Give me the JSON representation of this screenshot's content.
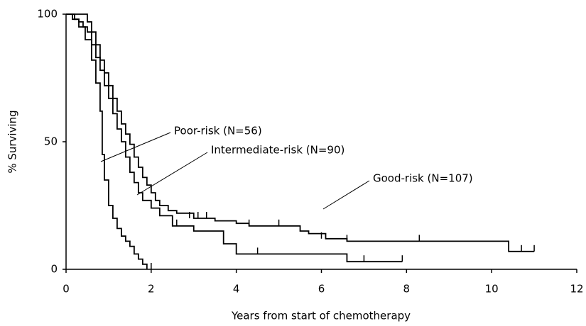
{
  "chart_data": {
    "type": "step",
    "x_label": "Years from start of chemotherapy",
    "y_label": "% Surviving",
    "xlim": [
      0,
      12
    ],
    "xticks": [
      0,
      2,
      4,
      6,
      8,
      10,
      12
    ],
    "ylim": [
      0,
      100
    ],
    "yticks": [
      0,
      50,
      100
    ],
    "series": [
      {
        "name": "Poor-risk (N=56)",
        "color": "#000000",
        "x": [
          0,
          0.15,
          0.3,
          0.45,
          0.6,
          0.7,
          0.8,
          0.85,
          0.9,
          1.0,
          1.1,
          1.2,
          1.3,
          1.4,
          1.5,
          1.6,
          1.7,
          1.8,
          1.9
        ],
        "values": [
          100,
          98,
          95,
          90,
          82,
          73,
          62,
          45,
          35,
          25,
          20,
          16,
          13,
          11,
          9,
          6,
          4,
          2,
          0
        ],
        "censored": {
          "x": [
            2.0
          ],
          "values": [
            0
          ]
        }
      },
      {
        "name": "Intermediate-risk (N=90)",
        "color": "#000000",
        "x": [
          0,
          0.2,
          0.3,
          0.4,
          0.5,
          0.6,
          0.7,
          0.8,
          0.9,
          1.0,
          1.1,
          1.2,
          1.3,
          1.4,
          1.5,
          1.6,
          1.7,
          1.8,
          2.0,
          2.2,
          2.5,
          3.0,
          3.7,
          4.0,
          6.6,
          7.9
        ],
        "values": [
          100,
          98,
          97,
          95,
          93,
          88,
          83,
          78,
          72,
          67,
          61,
          55,
          50,
          44,
          38,
          34,
          30,
          27,
          24,
          21,
          17,
          15,
          10,
          6,
          3,
          3
        ],
        "censored": {
          "x": [
            2.2,
            2.6,
            4.5,
            7.0,
            7.9
          ],
          "values": [
            21,
            17,
            6,
            3,
            3
          ]
        }
      },
      {
        "name": "Good-risk (N=107)",
        "color": "#000000",
        "x": [
          0,
          0.5,
          0.6,
          0.7,
          0.8,
          0.9,
          1.0,
          1.1,
          1.2,
          1.3,
          1.4,
          1.5,
          1.6,
          1.7,
          1.8,
          1.9,
          2.0,
          2.1,
          2.2,
          2.4,
          2.6,
          3.0,
          3.5,
          4.0,
          4.3,
          5.5,
          5.7,
          6.1,
          6.6,
          10.4,
          11.0
        ],
        "values": [
          100,
          97,
          93,
          88,
          82,
          77,
          72,
          67,
          62,
          57,
          53,
          49,
          44,
          40,
          36,
          33,
          30,
          27,
          25,
          23,
          22,
          20,
          19,
          18,
          17,
          15,
          14,
          12,
          11,
          7,
          7
        ],
        "censored": {
          "x": [
            2.9,
            3.1,
            3.3,
            4.3,
            5.0,
            6.0,
            6.6,
            8.3,
            10.7,
            11.0
          ],
          "values": [
            20,
            20,
            20,
            17,
            17,
            12,
            11,
            11,
            7,
            7
          ]
        }
      }
    ]
  }
}
